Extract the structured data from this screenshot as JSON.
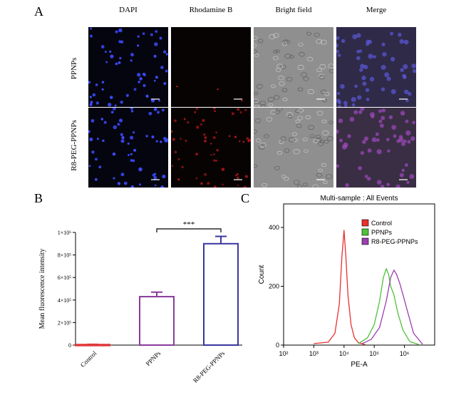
{
  "panel_a": {
    "letter": "A",
    "columns": [
      "DAPI",
      "Rhodamine B",
      "Bright field",
      "Merge"
    ],
    "rows": [
      "PPNPs",
      "R8-PEG-PPNPs"
    ]
  },
  "panel_b": {
    "letter": "B",
    "significance": "***",
    "chart_data": {
      "type": "bar",
      "categories": [
        "Control",
        "PPNPs",
        "R8-PEG-PPNPs"
      ],
      "values": [
        5000,
        430000,
        900000
      ],
      "errors": [
        2000,
        40000,
        65000
      ],
      "bar_colors": [
        "#e0383b",
        "#8a3a9c",
        "#3a37a0"
      ],
      "ylabel": "Mean fluorescence intensity",
      "ylim": [
        0,
        1000000
      ],
      "yticks": [
        "0",
        "2×10⁵",
        "4×10⁵",
        "6×10⁵",
        "8×10⁵",
        "1×10⁶"
      ]
    }
  },
  "panel_c": {
    "letter": "C",
    "chart_data": {
      "type": "line",
      "title": "Multi-sample : All Events",
      "xlabel": "PE-A",
      "ylabel": "Count",
      "xscale": "log",
      "xlim": [
        100,
        10000000
      ],
      "ylim": [
        0,
        480
      ],
      "xticks": [
        "10²",
        "10³",
        "10⁴",
        "10⁵",
        "10⁶"
      ],
      "yticks": [
        "0",
        "200",
        "400"
      ],
      "legend_position": "top-right",
      "series": [
        {
          "name": "Control",
          "color": "#e8302f",
          "x": [
            1000,
            3000,
            5000,
            7000,
            8500,
            10000,
            11500,
            13500,
            17000,
            22000,
            30000,
            50000
          ],
          "y": [
            5,
            10,
            40,
            140,
            300,
            390,
            300,
            170,
            70,
            25,
            8,
            2
          ]
        },
        {
          "name": "PPNPs",
          "color": "#4fc23a",
          "x": [
            30000,
            60000,
            100000,
            150000,
            200000,
            250000,
            300000,
            350000,
            450000,
            600000,
            900000,
            1500000,
            3000000
          ],
          "y": [
            5,
            25,
            70,
            150,
            230,
            260,
            240,
            200,
            170,
            110,
            50,
            12,
            2
          ]
        },
        {
          "name": "R8-PEG-PPNPs",
          "color": "#9b3fb0",
          "x": [
            40000,
            80000,
            150000,
            250000,
            350000,
            450000,
            550000,
            700000,
            900000,
            1300000,
            2000000,
            4000000
          ],
          "y": [
            5,
            20,
            60,
            150,
            230,
            255,
            240,
            210,
            170,
            110,
            40,
            3
          ]
        }
      ]
    }
  }
}
